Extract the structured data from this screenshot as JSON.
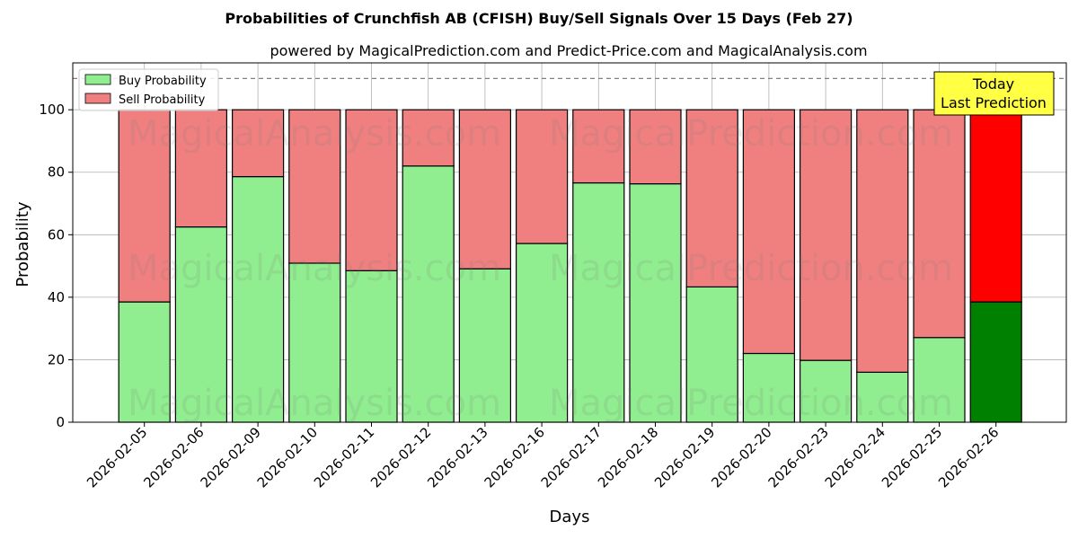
{
  "chart_data": {
    "type": "bar",
    "stacked": true,
    "title": "Probabilities of Crunchfish AB (CFISH) Buy/Sell Signals Over 15 Days (Feb 27)",
    "subtitle": "powered by MagicalPrediction.com and Predict-Price.com and MagicalAnalysis.com",
    "xlabel": "Days",
    "ylabel": "Probability",
    "ylim": [
      0,
      115
    ],
    "yticks": [
      0,
      20,
      40,
      60,
      80,
      100
    ],
    "grid": true,
    "legend_position": "top-left",
    "reference_line": 110,
    "categories": [
      "2026-02-05",
      "2026-02-06",
      "2026-02-09",
      "2026-02-10",
      "2026-02-11",
      "2026-02-12",
      "2026-02-13",
      "2026-02-16",
      "2026-02-17",
      "2026-02-18",
      "2026-02-19",
      "2026-02-20",
      "2026-02-23",
      "2026-02-24",
      "2026-02-25",
      "2026-02-26"
    ],
    "series": [
      {
        "name": "Buy Probability",
        "color": "#90ee90",
        "values": [
          38.5,
          62.5,
          78.6,
          50.9,
          48.5,
          82.0,
          49.1,
          57.2,
          76.6,
          76.3,
          43.3,
          22.0,
          19.8,
          16.0,
          27.1,
          38.5
        ]
      },
      {
        "name": "Sell Probability",
        "color": "#f08080",
        "values": [
          61.5,
          37.5,
          21.4,
          49.1,
          51.5,
          18.0,
          50.9,
          42.8,
          23.4,
          23.7,
          56.7,
          78.0,
          80.2,
          84.0,
          72.9,
          61.5
        ]
      }
    ],
    "highlight": {
      "index": 15,
      "buy_color": "#008000",
      "sell_color": "#ff0000"
    },
    "annotation": {
      "lines": [
        "Today",
        "Last Prediction"
      ],
      "background": "#ffff44"
    },
    "watermarks": [
      "MagicalAnalysis.com",
      "MagicalPrediction.com"
    ]
  }
}
